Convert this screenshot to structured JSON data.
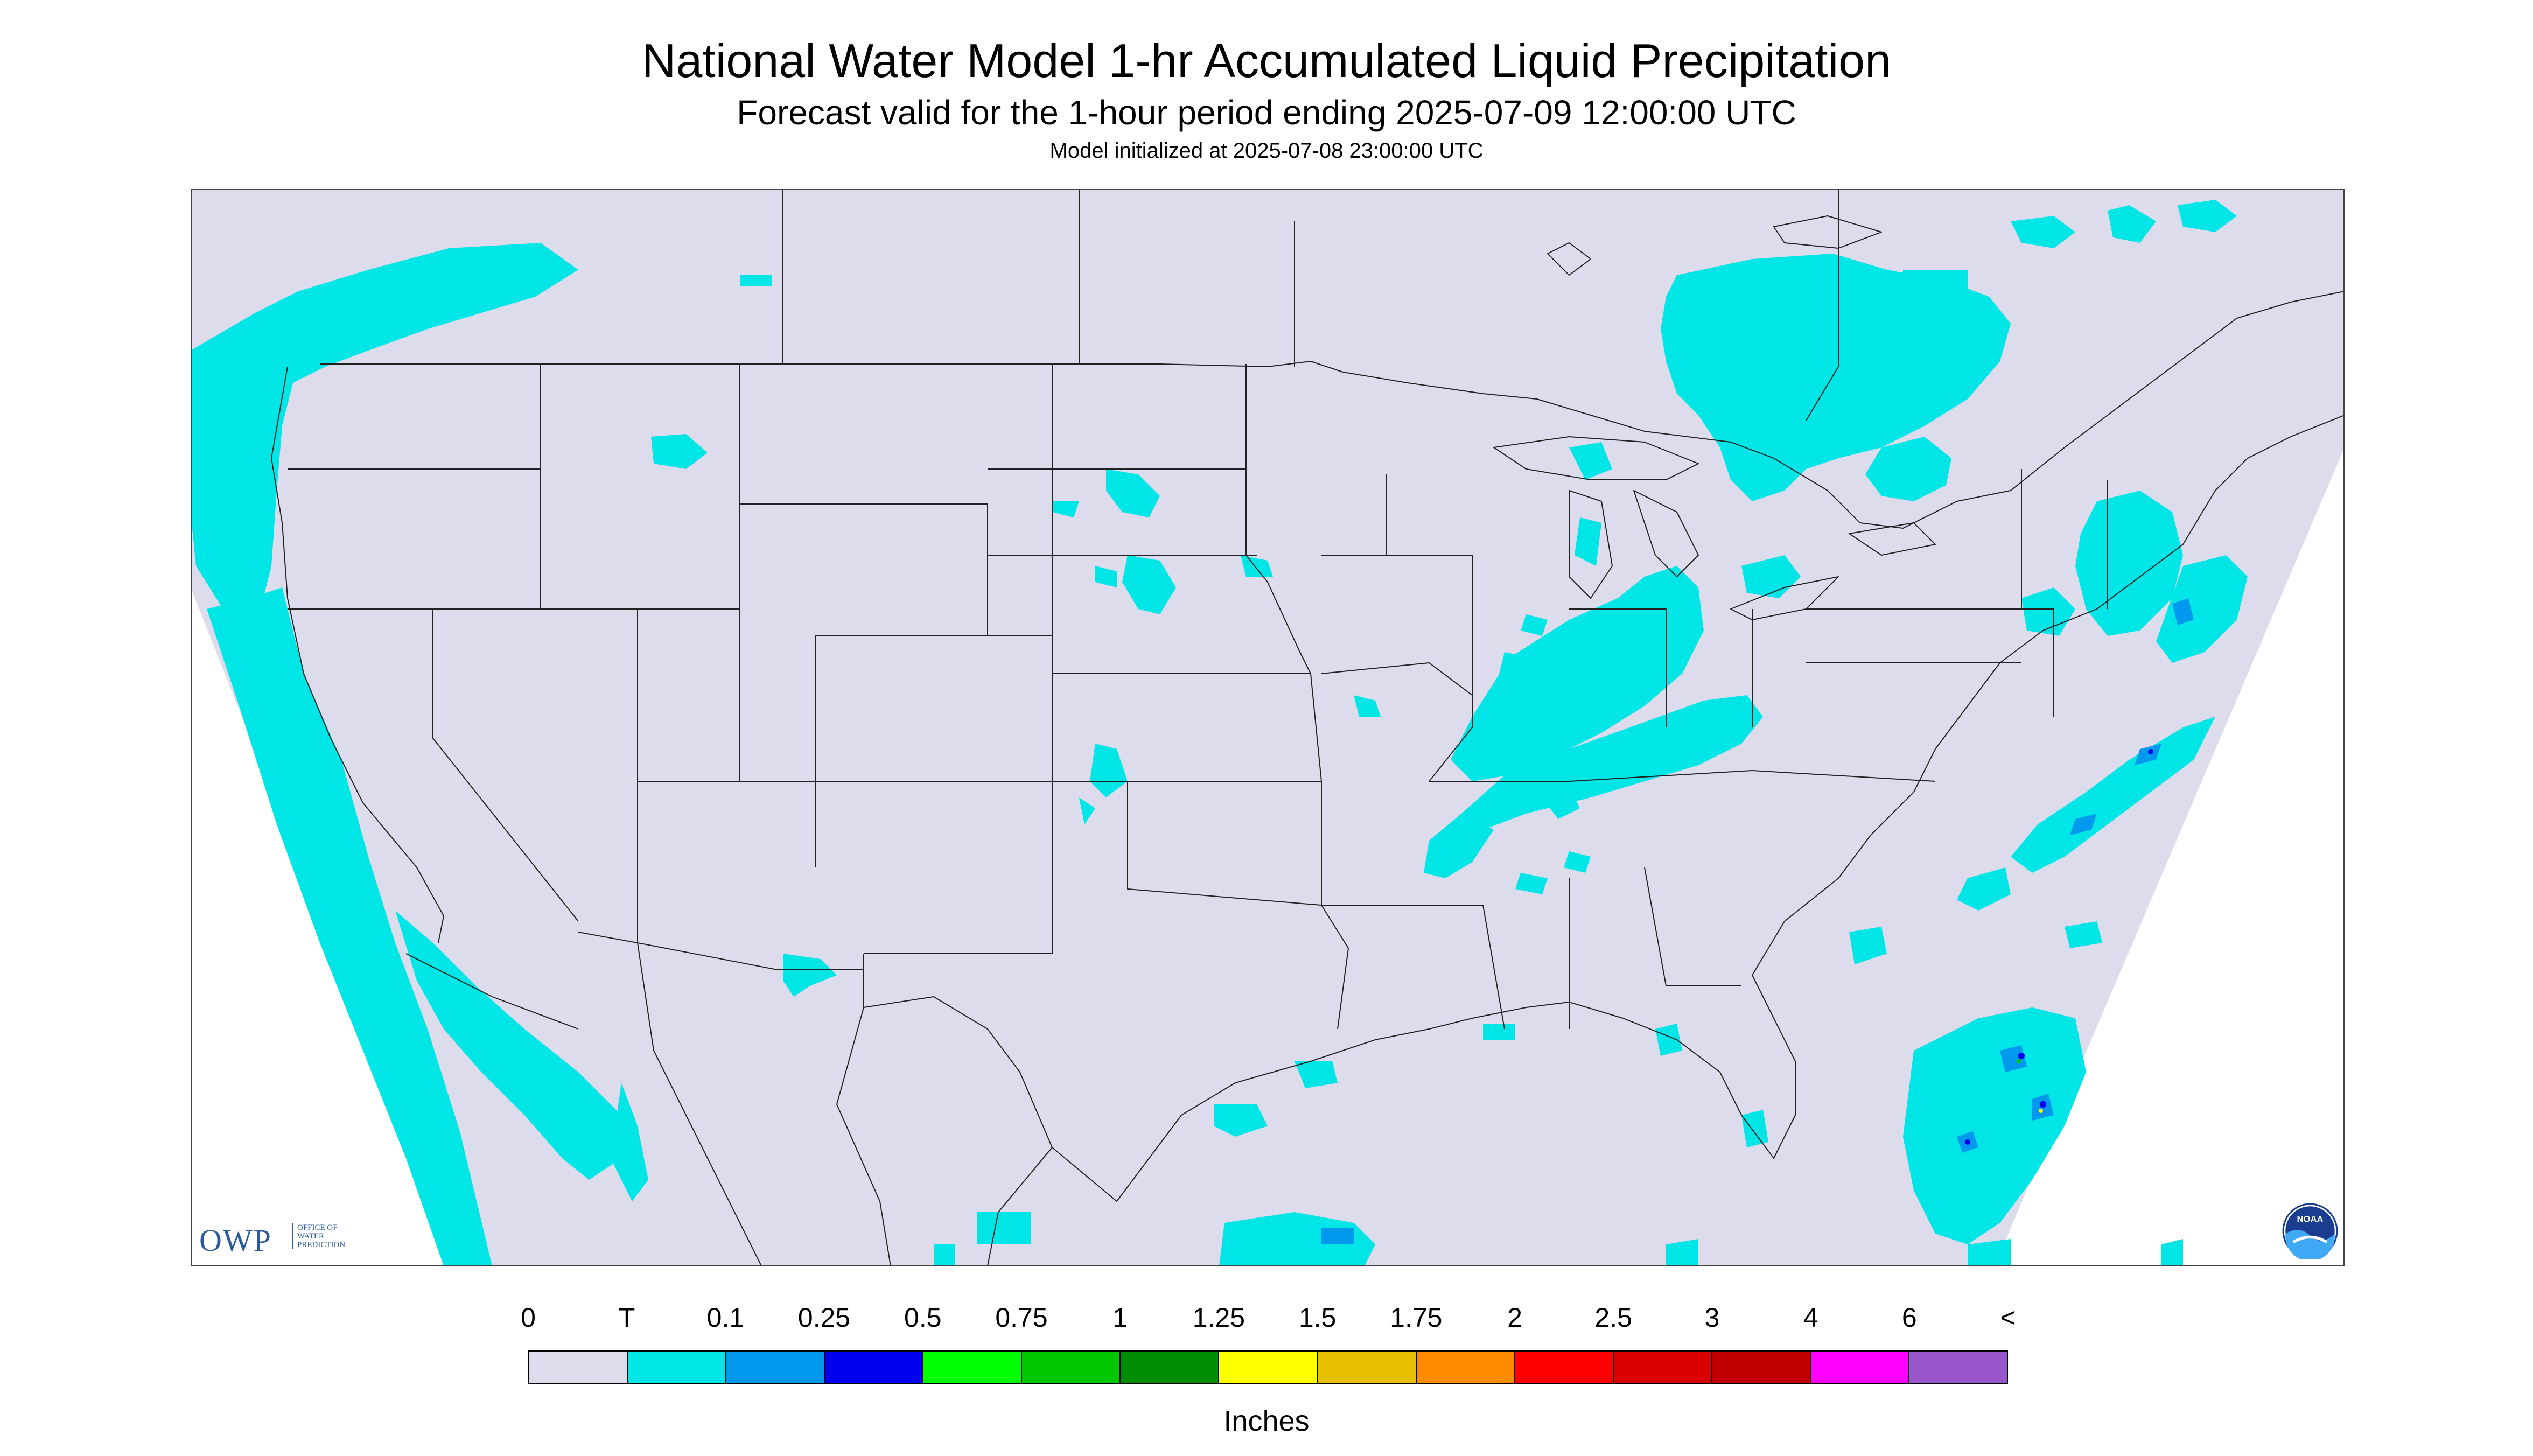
{
  "header": {
    "title": "National Water Model 1-hr Accumulated Liquid Precipitation",
    "subtitle": "Forecast valid for the 1-hour period ending 2025-07-09 12:00:00 UTC",
    "init": "Model initialized at 2025-07-08 23:00:00 UTC"
  },
  "map": {
    "background_color": "#dcdcec",
    "outside_color": "#ffffff",
    "precip_light_color": "#00e5e5",
    "precip_med_color": "#0099ee",
    "precip_heavy_color": "#0000ee",
    "border_color": "#222222"
  },
  "legend": {
    "labels": [
      "0",
      "T",
      "0.1",
      "0.25",
      "0.5",
      "0.75",
      "1",
      "1.25",
      "1.5",
      "1.75",
      "2",
      "2.5",
      "3",
      "4",
      "6",
      "<"
    ],
    "colors": [
      "#dcdcec",
      "#00e5e5",
      "#0099ee",
      "#0000ee",
      "#00ff00",
      "#00c800",
      "#008c00",
      "#ffff00",
      "#e6c000",
      "#ff8c00",
      "#ff0000",
      "#d80000",
      "#c00000",
      "#ff00ff",
      "#9955cc"
    ],
    "units": "Inches"
  },
  "logos": {
    "owp_mark": "OWP",
    "owp_text": [
      "OFFICE OF",
      "WATER",
      "PREDICTION"
    ],
    "noaa_text": "NOAA"
  }
}
